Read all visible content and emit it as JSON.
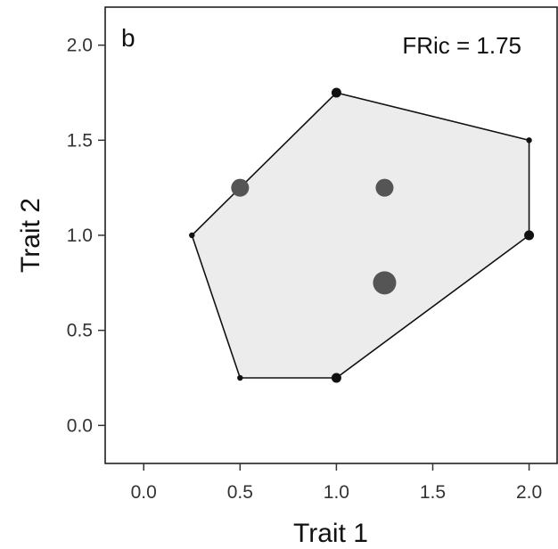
{
  "chart_data": {
    "type": "scatter",
    "panel_label": "b",
    "annotation": "FRic = 1.75",
    "xlabel": "Trait 1",
    "ylabel": "Trait 2",
    "xlim": [
      -0.2,
      2.15
    ],
    "ylim": [
      -0.2,
      2.2
    ],
    "xticks": [
      0.0,
      0.5,
      1.0,
      1.5,
      2.0
    ],
    "yticks": [
      0.0,
      0.5,
      1.0,
      1.5,
      2.0
    ],
    "xtick_labels": [
      "0.0",
      "0.5",
      "1.0",
      "1.5",
      "2.0"
    ],
    "ytick_labels": [
      "0.0",
      "0.5",
      "1.0",
      "1.5",
      "2.0"
    ],
    "grid": false,
    "hull_fill_color": "#ececec",
    "hull_stroke_color": "#111111",
    "vertex_color": "#111111",
    "interior_color": "#555555",
    "hull": [
      {
        "x": 1.0,
        "y": 1.75
      },
      {
        "x": 2.0,
        "y": 1.5
      },
      {
        "x": 2.0,
        "y": 1.0
      },
      {
        "x": 1.0,
        "y": 0.25
      },
      {
        "x": 0.5,
        "y": 0.25
      },
      {
        "x": 0.25,
        "y": 1.0
      }
    ],
    "points": [
      {
        "x": 1.0,
        "y": 1.75,
        "size": 2,
        "role": "vertex"
      },
      {
        "x": 2.0,
        "y": 1.5,
        "size": 1,
        "role": "vertex"
      },
      {
        "x": 2.0,
        "y": 1.0,
        "size": 2,
        "role": "vertex"
      },
      {
        "x": 1.0,
        "y": 0.25,
        "size": 2,
        "role": "vertex"
      },
      {
        "x": 0.5,
        "y": 0.25,
        "size": 1,
        "role": "vertex"
      },
      {
        "x": 0.25,
        "y": 1.0,
        "size": 1,
        "role": "vertex"
      },
      {
        "x": 0.5,
        "y": 1.25,
        "size": 3,
        "role": "interior"
      },
      {
        "x": 1.25,
        "y": 1.25,
        "size": 3,
        "role": "interior"
      },
      {
        "x": 1.25,
        "y": 0.75,
        "size": 4,
        "role": "interior"
      }
    ]
  }
}
